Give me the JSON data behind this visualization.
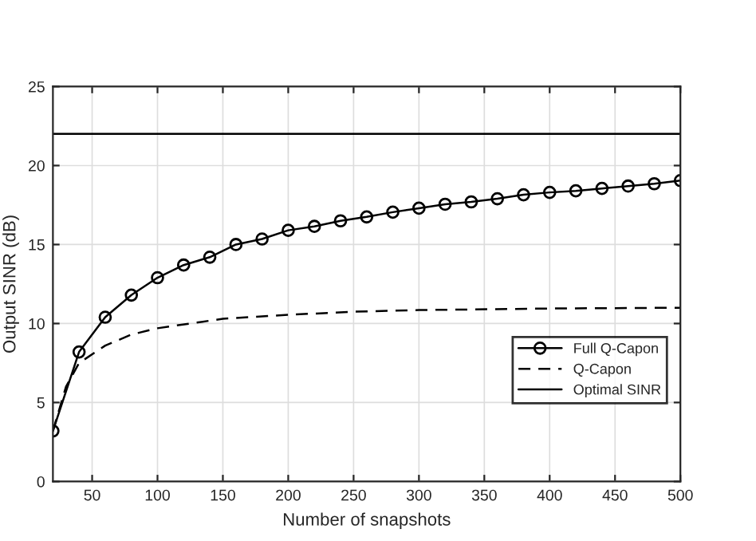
{
  "chart_data": {
    "type": "line",
    "xlabel": "Number of snapshots",
    "ylabel": "Output SINR (dB)",
    "xlim": [
      20,
      500
    ],
    "xticks": [
      50,
      100,
      150,
      200,
      250,
      300,
      350,
      400,
      450,
      500
    ],
    "ylim": [
      0,
      25
    ],
    "yticks": [
      0,
      5,
      10,
      15,
      20,
      25
    ],
    "grid": true,
    "legend": "lower right",
    "series": [
      {
        "name": "Full Q-Capon",
        "color": "#000000",
        "marker": "circle",
        "line_style": "solid",
        "x": [
          20,
          40,
          60,
          80,
          100,
          120,
          140,
          160,
          180,
          200,
          220,
          240,
          260,
          280,
          300,
          320,
          340,
          360,
          380,
          400,
          420,
          440,
          460,
          480,
          500
        ],
        "values": [
          3.2,
          8.2,
          10.4,
          11.8,
          12.9,
          13.7,
          14.2,
          15.0,
          15.35,
          15.9,
          16.15,
          16.5,
          16.75,
          17.05,
          17.3,
          17.55,
          17.7,
          17.9,
          18.15,
          18.3,
          18.4,
          18.55,
          18.7,
          18.85,
          19.05
        ]
      },
      {
        "name": "Q-Capon",
        "color": "#000000",
        "marker": "none",
        "line_style": "dashed",
        "x": [
          20,
          30,
          40,
          60,
          80,
          100,
          150,
          200,
          250,
          300,
          400,
          500
        ],
        "values": [
          3.2,
          6.0,
          7.5,
          8.6,
          9.3,
          9.7,
          10.3,
          10.55,
          10.75,
          10.85,
          10.95,
          11.0
        ]
      },
      {
        "name": "Optimal SINR",
        "color": "#000000",
        "marker": "none",
        "line_style": "solid",
        "x": [
          20,
          500
        ],
        "values": [
          22,
          22
        ]
      }
    ]
  }
}
